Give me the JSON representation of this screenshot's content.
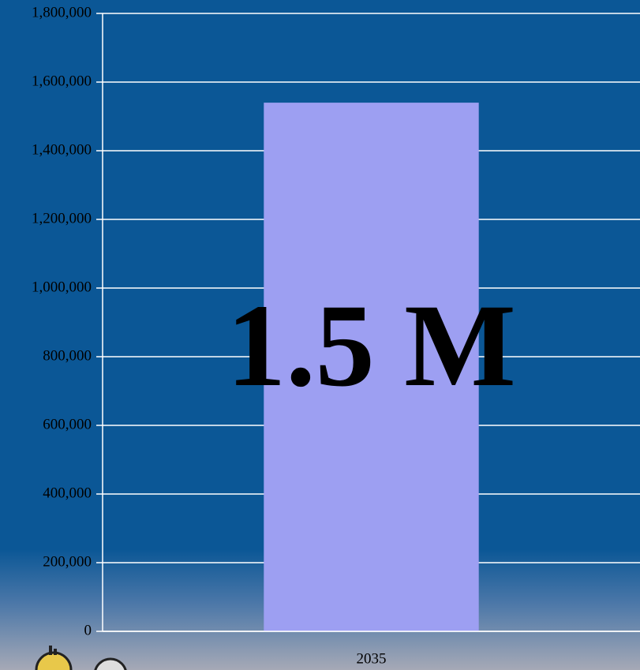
{
  "chart_data": {
    "type": "bar",
    "categories": [
      "2035"
    ],
    "values": [
      1540000
    ],
    "value_labels": [
      "1.5 M"
    ],
    "color": "#9d9ff2",
    "ylim": [
      0,
      1800000
    ],
    "yticks": [
      0,
      {
        "value": 200000,
        "label": "200,000"
      },
      {
        "value": 400000,
        "label": "400,000"
      },
      {
        "value": 600000,
        "label": "600,000"
      },
      {
        "value": 800000,
        "label": "800,000"
      },
      {
        "value": 1000000,
        "label": "1,000,000"
      },
      {
        "value": 1200000,
        "label": "1,200,000"
      },
      {
        "value": 1400000,
        "label": "1,400,000"
      },
      {
        "value": 1600000,
        "label": "1,600,000"
      },
      {
        "value": 1800000,
        "label": "1,800,000"
      }
    ],
    "grid": true
  }
}
